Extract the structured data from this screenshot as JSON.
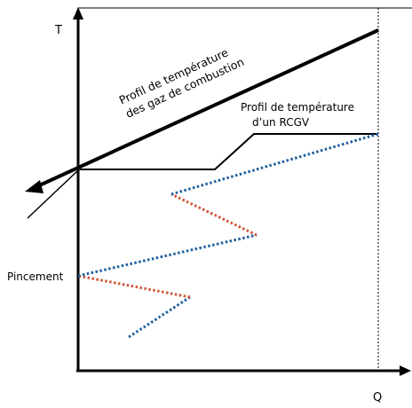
{
  "labels": {
    "axis_t": "T",
    "axis_q": "Q",
    "gas_line1": "Profil de température",
    "gas_line2": "des gaz de combustion",
    "rcgv_line1": "Profil de température",
    "rcgv_line2": "d’un RCGV",
    "pinch": "Pincement"
  },
  "colors": {
    "line": "#000000",
    "blue_dots": "#1f5fa0",
    "red_dots": "#d2553a"
  }
}
